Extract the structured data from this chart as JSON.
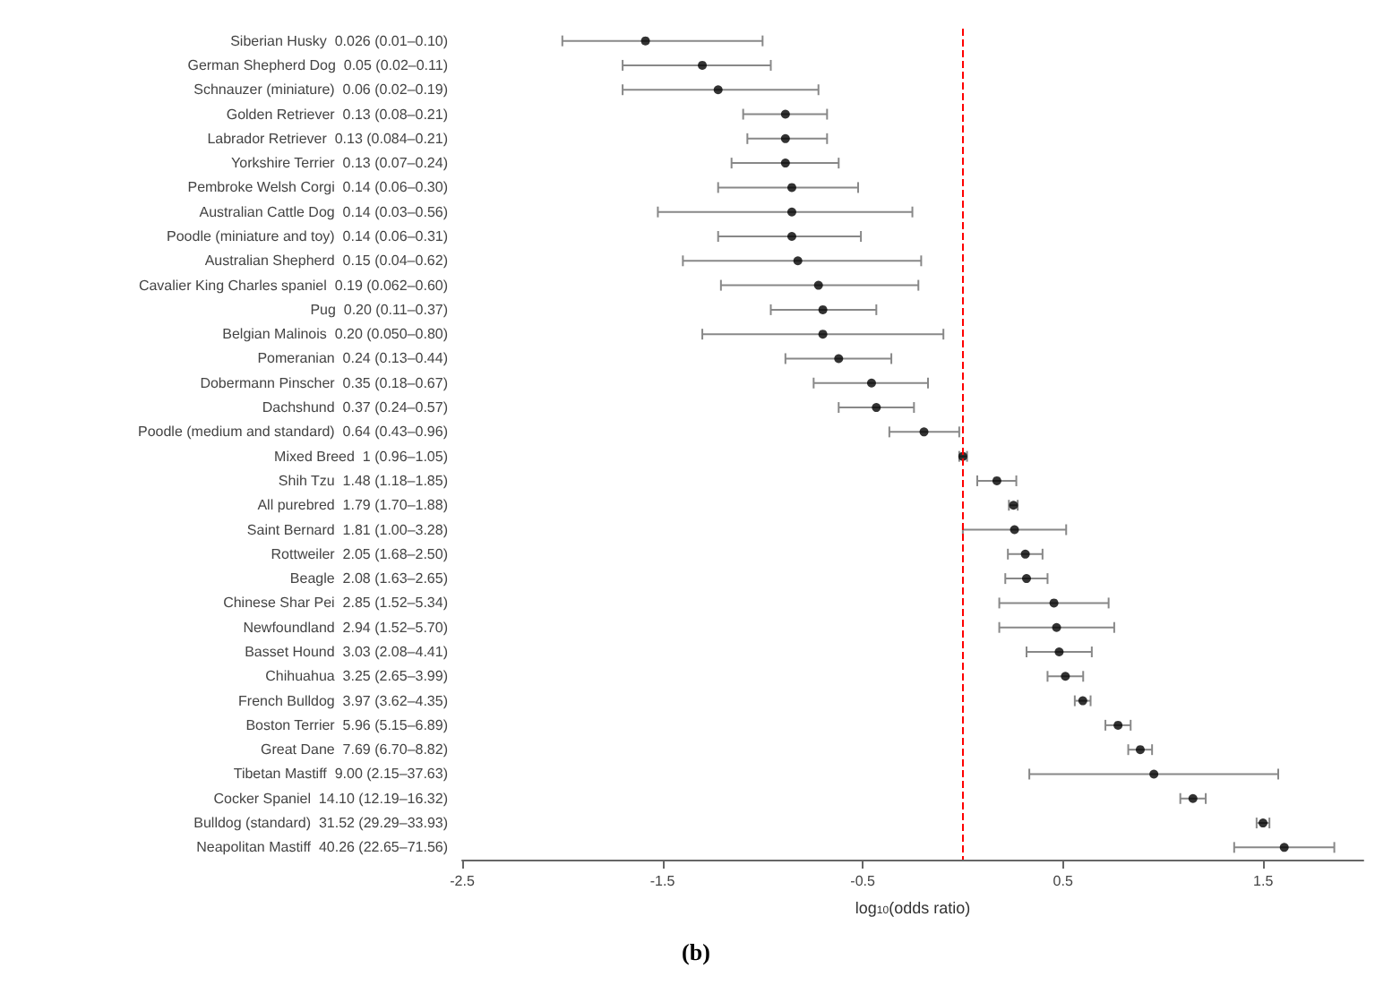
{
  "chart_data": {
    "type": "scatter",
    "orientation": "horizontal",
    "xlabel": "log$_{10}$(odds ratio)",
    "annotations": [
      "(b)"
    ],
    "categories": [
      "Siberian Husky  0.026 (0.01–0.10)",
      "German Shepherd Dog  0.05 (0.02–0.11)",
      "Schnauzer (miniature)  0.06 (0.02–0.19)",
      "Golden Retriever  0.13 (0.08–0.21)",
      "Labrador Retriever  0.13 (0.084–0.21)",
      "Yorkshire Terrier  0.13 (0.07–0.24)",
      "Pembroke Welsh Corgi  0.14 (0.06–0.30)",
      "Australian Cattle Dog  0.14 (0.03–0.56)",
      "Poodle (miniature and toy)  0.14 (0.06–0.31)",
      "Australian Shepherd  0.15 (0.04–0.62)",
      "Cavalier King Charles spaniel  0.19 (0.062–0.60)",
      "Pug  0.20 (0.11–0.37)",
      "Belgian Malinois  0.20 (0.050–0.80)",
      "Pomeranian  0.24 (0.13–0.44)",
      "Dobermann Pinscher  0.35 (0.18–0.67)",
      "Dachshund  0.37 (0.24–0.57)",
      "Poodle (medium and standard)  0.64 (0.43–0.96)",
      "Mixed Breed  1 (0.96–1.05)",
      "Shih Tzu  1.48 (1.18–1.85)",
      "All purebred  1.79 (1.70–1.88)",
      "Saint Bernard  1.81 (1.00–3.28)",
      "Rottweiler  2.05 (1.68–2.50)",
      "Beagle  2.08 (1.63–2.65)",
      "Chinese Shar Pei  2.85 (1.52–5.34)",
      "Newfoundland  2.94 (1.52–5.70)",
      "Basset Hound  3.03 (2.08–4.41)",
      "Chihuahua  3.25 (2.65–3.99)",
      "French Bulldog  3.97 (3.62–4.35)",
      "Boston Terrier  5.96 (5.15–6.89)",
      "Great Dane  7.69 (6.70–8.82)",
      "Tibetan Mastiff  9.00 (2.15–37.63)",
      "Cocker Spaniel  14.10 (12.19–16.32)",
      "Bulldog (standard)  31.52 (29.29–33.93)",
      "Neapolitan Mastiff  40.26 (22.65–71.56)"
    ],
    "values": [
      -1.585,
      -1.301,
      -1.222,
      -0.886,
      -0.886,
      -0.886,
      -0.854,
      -0.854,
      -0.854,
      -0.824,
      -0.721,
      -0.699,
      -0.699,
      -0.62,
      -0.456,
      -0.432,
      -0.194,
      0,
      0.17,
      0.253,
      0.258,
      0.312,
      0.318,
      0.455,
      0.468,
      0.481,
      0.512,
      0.599,
      0.775,
      0.886,
      0.954,
      1.149,
      1.499,
      1.605
    ],
    "errors": [
      [
        -2.0,
        -1.0
      ],
      [
        -1.699,
        -0.959
      ],
      [
        -1.699,
        -0.721
      ],
      [
        -1.097,
        -0.678
      ],
      [
        -1.076,
        -0.678
      ],
      [
        -1.155,
        -0.62
      ],
      [
        -1.222,
        -0.523
      ],
      [
        -1.523,
        -0.252
      ],
      [
        -1.222,
        -0.509
      ],
      [
        -1.398,
        -0.208
      ],
      [
        -1.208,
        -0.222
      ],
      [
        -0.959,
        -0.432
      ],
      [
        -1.301,
        -0.097
      ],
      [
        -0.886,
        -0.357
      ],
      [
        -0.745,
        -0.174
      ],
      [
        -0.62,
        -0.244
      ],
      [
        -0.367,
        -0.018
      ],
      [
        -0.018,
        0.021
      ],
      [
        0.072,
        0.267
      ],
      [
        0.23,
        0.274
      ],
      [
        0.0,
        0.516
      ],
      [
        0.225,
        0.398
      ],
      [
        0.212,
        0.423
      ],
      [
        0.182,
        0.728
      ],
      [
        0.182,
        0.756
      ],
      [
        0.318,
        0.644
      ],
      [
        0.423,
        0.601
      ],
      [
        0.559,
        0.638
      ],
      [
        0.712,
        0.838
      ],
      [
        0.826,
        0.945
      ],
      [
        0.332,
        1.575
      ],
      [
        1.086,
        1.213
      ],
      [
        1.467,
        1.531
      ],
      [
        1.355,
        1.855
      ]
    ],
    "color": "#000000",
    "marker": "circle",
    "grid": false,
    "xlim": [
      -2.5,
      2.0
    ],
    "xticks": [
      -2.5,
      -1.5,
      -0.5,
      0.5,
      1.5
    ],
    "ref_lines": [
      {
        "axis": "x",
        "value": 0,
        "color": "#ff0000",
        "line_style": "dashed"
      }
    ]
  }
}
